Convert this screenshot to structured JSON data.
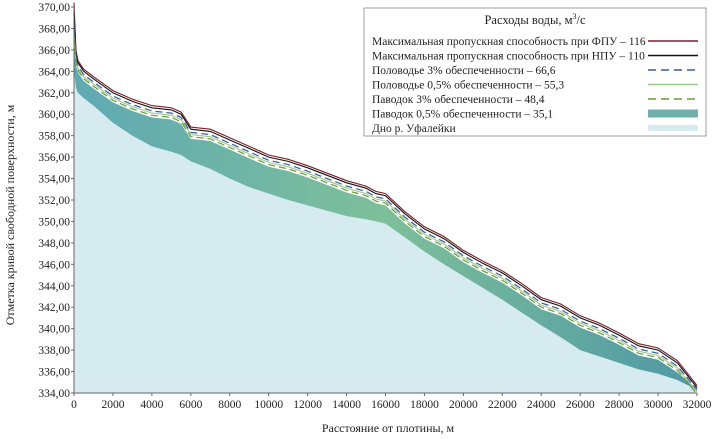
{
  "chart_data": {
    "type": "area",
    "xlabel": "Расстояние от плотины, м",
    "ylabel": "Отметка кривой свободной поверхности, м",
    "xlim": [
      0,
      32000
    ],
    "ylim": [
      334,
      370
    ],
    "x_ticks": [
      "0",
      "2000",
      "4000",
      "6000",
      "8000",
      "10000",
      "12000",
      "14000",
      "16000",
      "18000",
      "20000",
      "22000",
      "24000",
      "26000",
      "28000",
      "30000",
      "32000"
    ],
    "y_ticks": [
      "334,00",
      "336,00",
      "338,00",
      "340,00",
      "342,00",
      "344,00",
      "346,00",
      "348,00",
      "350,00",
      "352,00",
      "354,00",
      "356,00",
      "358,00",
      "360,00",
      "362,00",
      "364,00",
      "366,00",
      "368,00",
      "370,00"
    ],
    "legend": {
      "title_prefix": "Расходы воды, м",
      "title_sup": "3",
      "title_suffix": "/с",
      "position": "top-right"
    },
    "x": [
      0,
      100,
      200,
      500,
      1000,
      2000,
      3000,
      4000,
      5000,
      5500,
      6000,
      7000,
      8000,
      9000,
      10000,
      11000,
      12000,
      13000,
      14000,
      15000,
      15500,
      16000,
      17000,
      18000,
      19000,
      20000,
      21000,
      22000,
      23000,
      24000,
      25000,
      26000,
      27000,
      28000,
      29000,
      30000,
      31000,
      32000
    ],
    "series": [
      {
        "name": "Максимальная пропускная способность при ФПУ – 116",
        "color": "#7a1f2b",
        "style": "solid",
        "values": [
          370.4,
          366.0,
          365.0,
          364.2,
          363.5,
          362.2,
          361.4,
          360.8,
          360.6,
          360.2,
          358.8,
          358.6,
          357.8,
          357.0,
          356.2,
          355.8,
          355.2,
          354.5,
          353.8,
          353.3,
          352.8,
          352.6,
          350.9,
          349.5,
          348.6,
          347.3,
          346.3,
          345.4,
          344.2,
          342.9,
          342.3,
          341.2,
          340.5,
          339.6,
          338.6,
          338.2,
          337.0,
          334.7
        ]
      },
      {
        "name": "Максимальная пропускная способность при НПУ – 110",
        "color": "#111111",
        "style": "solid",
        "values": [
          369.8,
          365.7,
          364.8,
          364.0,
          363.3,
          362.0,
          361.2,
          360.6,
          360.4,
          360.0,
          358.6,
          358.4,
          357.6,
          356.8,
          356.0,
          355.6,
          355.0,
          354.3,
          353.6,
          353.1,
          352.6,
          352.4,
          350.7,
          349.3,
          348.4,
          347.1,
          346.1,
          345.2,
          344.0,
          342.7,
          342.1,
          341.0,
          340.3,
          339.4,
          338.4,
          338.0,
          336.8,
          334.5
        ]
      },
      {
        "name": "Половодье 3% обеспеченности – 66,6",
        "color": "#3b5a9e",
        "style": "dashed",
        "values": [
          368.2,
          365.2,
          364.5,
          363.7,
          363.0,
          361.7,
          360.9,
          360.3,
          360.1,
          359.7,
          358.3,
          358.1,
          357.3,
          356.5,
          355.7,
          355.3,
          354.7,
          354.0,
          353.3,
          352.8,
          352.3,
          352.1,
          350.4,
          349.0,
          348.1,
          346.8,
          345.8,
          344.9,
          343.7,
          342.4,
          341.8,
          340.7,
          340.0,
          339.1,
          338.1,
          337.7,
          336.5,
          334.3
        ]
      },
      {
        "name": "Половодье 0,5% обеспеченности – 55,3",
        "color": "#9fc98a",
        "style": "solid",
        "values": [
          367.6,
          365.0,
          364.3,
          363.5,
          362.8,
          361.5,
          360.7,
          360.1,
          359.9,
          359.5,
          358.1,
          357.9,
          357.1,
          356.3,
          355.5,
          355.1,
          354.5,
          353.8,
          353.1,
          352.6,
          352.1,
          351.9,
          350.2,
          348.8,
          347.9,
          346.6,
          345.6,
          344.7,
          343.5,
          342.2,
          341.6,
          340.5,
          339.8,
          338.9,
          337.9,
          337.5,
          336.3,
          334.1
        ]
      },
      {
        "name": "Паводок 3% обеспеченности – 48,4",
        "color": "#6a9a3a",
        "style": "dashed",
        "values": [
          367.2,
          364.8,
          364.1,
          363.3,
          362.6,
          361.3,
          360.5,
          359.9,
          359.7,
          359.3,
          357.9,
          357.7,
          356.9,
          356.1,
          355.3,
          354.9,
          354.3,
          353.6,
          352.9,
          352.4,
          351.9,
          351.7,
          350.0,
          348.6,
          347.7,
          346.4,
          345.4,
          344.5,
          343.3,
          342.0,
          341.4,
          340.3,
          339.6,
          338.7,
          337.7,
          337.3,
          336.1,
          333.9
        ]
      },
      {
        "name": "Паводок 0,5% обеспеченности – 35,1",
        "color": "#6fb0a8",
        "style": "band",
        "values": [
          366.8,
          364.6,
          363.9,
          363.1,
          362.4,
          361.1,
          360.3,
          359.7,
          359.5,
          359.1,
          357.7,
          357.5,
          356.7,
          355.9,
          355.1,
          354.7,
          354.1,
          353.4,
          352.7,
          352.2,
          351.7,
          351.5,
          349.8,
          348.4,
          347.5,
          346.2,
          345.2,
          344.3,
          343.1,
          341.8,
          341.2,
          340.1,
          339.4,
          338.5,
          337.5,
          337.1,
          335.9,
          334.4
        ]
      },
      {
        "name": "Дно р. Уфалейки",
        "color": "#d6ebef",
        "style": "fill",
        "values": [
          364.0,
          362.5,
          362.0,
          361.5,
          360.8,
          359.2,
          358.0,
          357.0,
          356.5,
          356.2,
          355.6,
          354.9,
          354.0,
          353.2,
          352.6,
          352.0,
          351.5,
          351.0,
          350.5,
          350.2,
          350.0,
          349.8,
          348.5,
          347.2,
          346.0,
          344.9,
          343.8,
          342.7,
          341.5,
          340.3,
          339.2,
          338.0,
          337.4,
          336.8,
          336.2,
          335.8,
          335.2,
          334.3
        ]
      }
    ],
    "grid": false
  }
}
